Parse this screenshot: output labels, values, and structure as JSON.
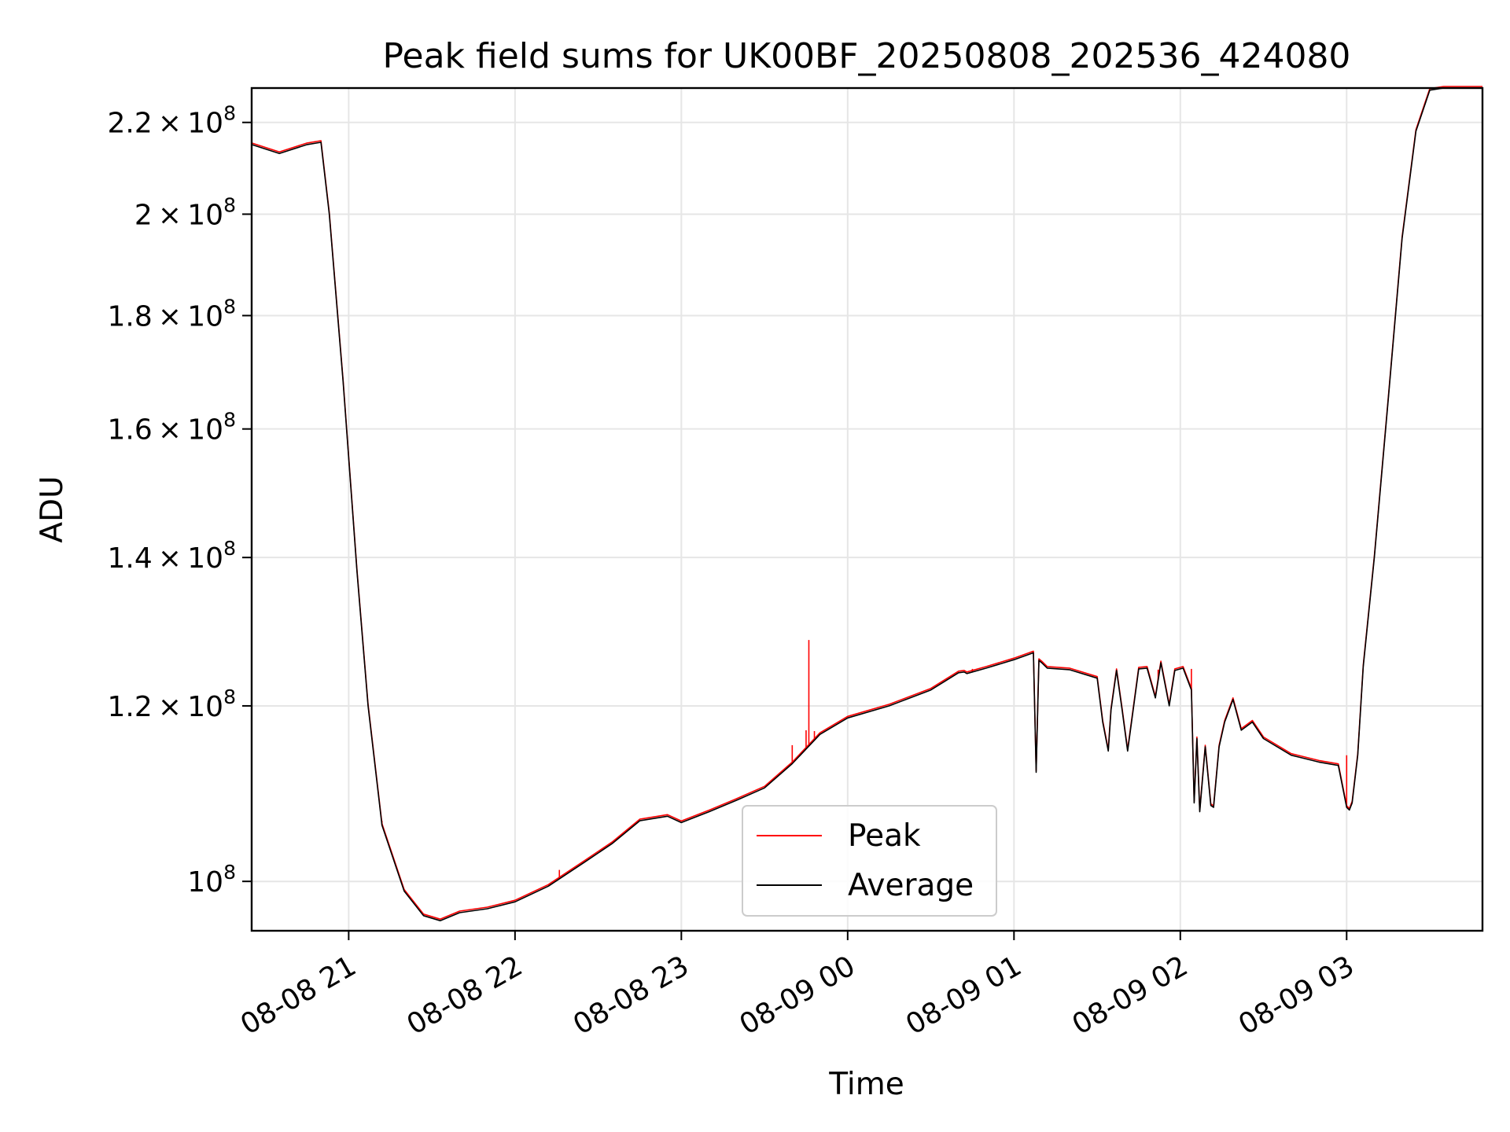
{
  "chart_data": {
    "type": "line",
    "title": "Peak field sums for UK00BF_20250808_202536_424080",
    "xlabel": "Time",
    "ylabel": "ADU",
    "y_scale": "log",
    "grid": true,
    "legend_position": "bottom-center",
    "xlim": [
      "2025-08-08 20:25",
      "2025-08-09 03:49"
    ],
    "ylim": [
      95000000,
      228000000
    ],
    "x_ticks": [
      "08-08 21",
      "08-08 22",
      "08-08 23",
      "08-09 00",
      "08-09 01",
      "08-09 02",
      "08-09 03"
    ],
    "x_tick_times": [
      "2025-08-08 21:00",
      "2025-08-08 22:00",
      "2025-08-08 23:00",
      "2025-08-09 00:00",
      "2025-08-09 01:00",
      "2025-08-09 02:00",
      "2025-08-09 03:00"
    ],
    "y_ticks": [
      {
        "value": 100000000,
        "mantissa": "",
        "exp": "8"
      },
      {
        "value": 120000000,
        "mantissa": "1.2",
        "exp": "8"
      },
      {
        "value": 140000000,
        "mantissa": "1.4",
        "exp": "8"
      },
      {
        "value": 160000000,
        "mantissa": "1.6",
        "exp": "8"
      },
      {
        "value": 180000000,
        "mantissa": "1.8",
        "exp": "8"
      },
      {
        "value": 200000000,
        "mantissa": "2",
        "exp": "8"
      },
      {
        "value": 220000000,
        "mantissa": "2.2",
        "exp": "8"
      }
    ],
    "series": [
      {
        "name": "Average",
        "color": "#000000",
        "x": [
          "2025-08-08 20:25",
          "2025-08-08 20:35",
          "2025-08-08 20:45",
          "2025-08-08 20:50",
          "2025-08-08 20:53",
          "2025-08-08 20:58",
          "2025-08-08 21:03",
          "2025-08-08 21:07",
          "2025-08-08 21:12",
          "2025-08-08 21:20",
          "2025-08-08 21:27",
          "2025-08-08 21:33",
          "2025-08-08 21:40",
          "2025-08-08 21:50",
          "2025-08-08 22:00",
          "2025-08-08 22:12",
          "2025-08-08 22:25",
          "2025-08-08 22:35",
          "2025-08-08 22:45",
          "2025-08-08 22:55",
          "2025-08-08 23:00",
          "2025-08-08 23:10",
          "2025-08-08 23:20",
          "2025-08-08 23:30",
          "2025-08-08 23:40",
          "2025-08-08 23:50",
          "2025-08-09 00:00",
          "2025-08-09 00:15",
          "2025-08-09 00:30",
          "2025-08-09 00:40",
          "2025-08-09 00:42",
          "2025-08-09 00:43",
          "2025-08-09 00:50",
          "2025-08-09 01:00",
          "2025-08-09 01:07",
          "2025-08-09 01:08",
          "2025-08-09 01:09",
          "2025-08-09 01:10",
          "2025-08-09 01:12",
          "2025-08-09 01:20",
          "2025-08-09 01:30",
          "2025-08-09 01:32",
          "2025-08-09 01:34",
          "2025-08-09 01:35",
          "2025-08-09 01:37",
          "2025-08-09 01:39",
          "2025-08-09 01:41",
          "2025-08-09 01:45",
          "2025-08-09 01:48",
          "2025-08-09 01:51",
          "2025-08-09 01:53",
          "2025-08-09 01:56",
          "2025-08-09 01:58",
          "2025-08-09 02:01",
          "2025-08-09 02:04",
          "2025-08-09 02:05",
          "2025-08-09 02:06",
          "2025-08-09 02:07",
          "2025-08-09 02:09",
          "2025-08-09 02:11",
          "2025-08-09 02:12",
          "2025-08-09 02:14",
          "2025-08-09 02:16",
          "2025-08-09 02:19",
          "2025-08-09 02:22",
          "2025-08-09 02:26",
          "2025-08-09 02:30",
          "2025-08-09 02:40",
          "2025-08-09 02:50",
          "2025-08-09 02:57",
          "2025-08-09 03:00",
          "2025-08-09 03:01",
          "2025-08-09 03:02",
          "2025-08-09 03:04",
          "2025-08-09 03:06",
          "2025-08-09 03:10",
          "2025-08-09 03:15",
          "2025-08-09 03:20",
          "2025-08-09 03:25",
          "2025-08-09 03:30",
          "2025-08-09 03:35",
          "2025-08-09 03:40",
          "2025-08-09 03:49"
        ],
        "y": [
          215000000,
          213000000,
          215000000,
          215500000,
          200000000,
          168000000,
          138000000,
          120000000,
          106000000,
          99000000,
          96500000,
          96000000,
          96800000,
          97200000,
          97900000,
          99500000,
          102000000,
          104000000,
          106500000,
          107000000,
          106300000,
          107500000,
          108800000,
          110200000,
          113000000,
          116500000,
          118500000,
          120000000,
          122000000,
          124200000,
          124300000,
          124100000,
          124800000,
          125900000,
          126800000,
          112000000,
          125800000,
          125500000,
          124800000,
          124600000,
          123500000,
          118000000,
          114500000,
          119500000,
          124500000,
          119500000,
          114500000,
          124700000,
          124800000,
          121000000,
          125500000,
          120000000,
          124500000,
          124800000,
          122000000,
          108500000,
          116000000,
          107500000,
          115000000,
          108200000,
          108000000,
          115000000,
          118000000,
          120800000,
          117000000,
          118000000,
          116000000,
          114000000,
          113200000,
          112800000,
          108000000,
          107700000,
          108500000,
          114000000,
          125000000,
          140000000,
          165000000,
          195000000,
          218000000,
          227500000,
          228000000,
          228000000,
          228000000
        ]
      },
      {
        "name": "Peak",
        "color": "#ff0000",
        "x": [
          "2025-08-08 21:12",
          "2025-08-08 22:16",
          "2025-08-08 22:53",
          "2025-08-08 23:13",
          "2025-08-08 23:40",
          "2025-08-08 23:45",
          "2025-08-08 23:46",
          "2025-08-08 23:48",
          "2025-08-09 00:45",
          "2025-08-09 01:28",
          "2025-08-09 01:52",
          "2025-08-09 02:04",
          "2025-08-09 03:00"
        ],
        "y": [
          106500000,
          101200000,
          106900000,
          107900000,
          115200000,
          117000000,
          128500000,
          116900000,
          124700000,
          123800000,
          124600000,
          124700000,
          114000000
        ]
      }
    ]
  }
}
